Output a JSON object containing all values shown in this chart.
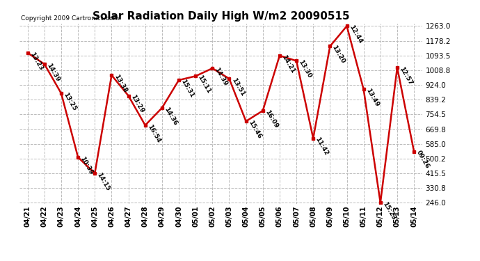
{
  "title": "Solar Radiation Daily High W/m2 20090515",
  "copyright": "Copyright 2009 Cartronics.com",
  "dates": [
    "04/21",
    "04/22",
    "04/23",
    "04/24",
    "04/25",
    "04/26",
    "04/27",
    "04/28",
    "04/29",
    "04/30",
    "05/01",
    "05/02",
    "05/03",
    "05/04",
    "05/05",
    "05/06",
    "05/07",
    "05/08",
    "05/09",
    "05/10",
    "05/11",
    "05/12",
    "05/13",
    "05/14"
  ],
  "values": [
    1109,
    1044,
    876,
    508,
    415,
    980,
    862,
    692,
    792,
    952,
    975,
    1020,
    960,
    715,
    776,
    1093,
    1063,
    617,
    1147,
    1263,
    899,
    246,
    1024,
    541
  ],
  "labels": [
    "13:23",
    "14:39",
    "13:25",
    "10:39",
    "14:15",
    "13:38",
    "13:29",
    "16:54",
    "14:36",
    "15:31",
    "15:11",
    "14:39",
    "13:51",
    "15:46",
    "16:09",
    "14:21",
    "13:30",
    "11:42",
    "13:20",
    "12:44",
    "13:49",
    "15:23",
    "12:57",
    "09:26"
  ],
  "ylim_min": 246.0,
  "ylim_max": 1263.0,
  "yticks": [
    246.0,
    330.8,
    415.5,
    500.2,
    585.0,
    669.8,
    754.5,
    839.2,
    924.0,
    1008.8,
    1093.5,
    1178.2,
    1263.0
  ],
  "line_color": "#cc0000",
  "marker_color": "#cc0000",
  "bg_color": "#ffffff",
  "grid_color": "#bbbbbb",
  "title_fontsize": 11,
  "label_fontsize": 6.5,
  "xtick_fontsize": 7,
  "ytick_fontsize": 7.5
}
